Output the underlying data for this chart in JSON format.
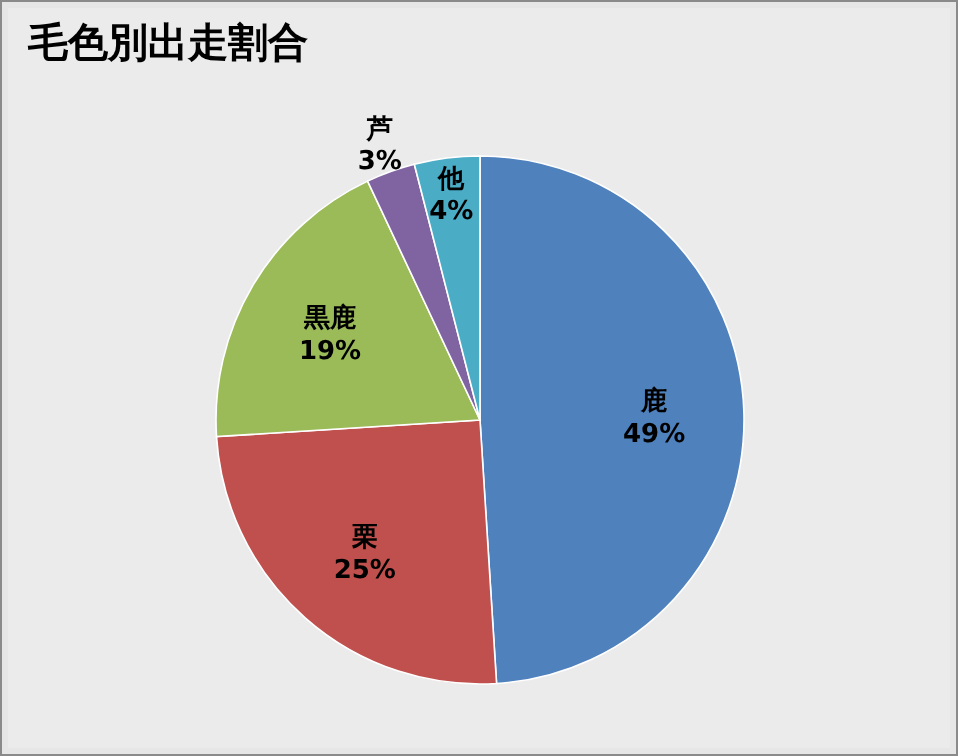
{
  "chart_data": {
    "type": "pie",
    "title": "毛色別出走割合",
    "categories": [
      "鹿",
      "栗",
      "黒鹿",
      "芦",
      "他"
    ],
    "values": [
      49,
      25,
      19,
      3,
      4
    ],
    "colors": [
      "#4f81bd",
      "#c0504d",
      "#9bbb59",
      "#8064a2",
      "#4bacc6"
    ],
    "value_labels": [
      "49%",
      "25%",
      "19%",
      "3%",
      "4%"
    ]
  }
}
